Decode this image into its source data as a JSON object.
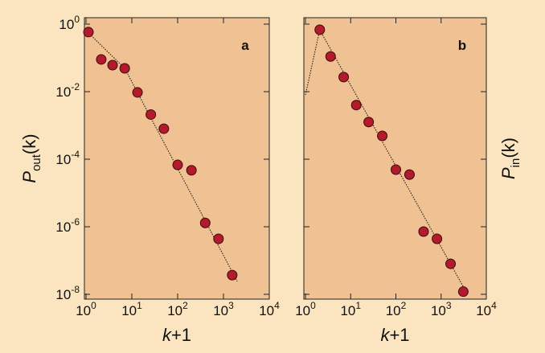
{
  "chart_data": [
    {
      "type": "scatter",
      "panel_label": "a",
      "ylabel": {
        "main": "P",
        "sub": "out",
        "arg": "(k)"
      },
      "ylabel_side": "left",
      "xlabel": {
        "main": "k",
        "rest": "+1"
      },
      "x": [
        1.13,
        2.15,
        3.8,
        7,
        13.3,
        26,
        50,
        100,
        200,
        400,
        780,
        1550
      ],
      "values": [
        0.58,
        0.09,
        0.061,
        0.049,
        0.0095,
        0.0021,
        0.0008,
        6.8e-05,
        4.7e-05,
        1.3e-06,
        4.4e-07,
        3.7e-08
      ],
      "color": "#b31b2c",
      "fit": {
        "x": [
          1,
          7,
          2000
        ],
        "values": [
          0.65,
          0.049,
          2.4e-08
        ]
      },
      "xlim": [
        1,
        10000
      ],
      "ylim": [
        1.55,
        7.2e-09
      ],
      "log_x": true,
      "log_y": true,
      "xticks": [
        {
          "value": 1,
          "label": "10",
          "sup": "0"
        },
        {
          "value": 10,
          "label": "10",
          "sup": "1"
        },
        {
          "value": 100,
          "label": "10",
          "sup": "2"
        },
        {
          "value": 1000,
          "label": "10",
          "sup": "3"
        },
        {
          "value": 10000,
          "label": "10",
          "sup": "4"
        }
      ],
      "yticks": [
        {
          "value": 1,
          "label": "10",
          "sup": "0"
        },
        {
          "value": 0.01,
          "label": "10",
          "sup": "-2"
        },
        {
          "value": 0.0001,
          "label": "10",
          "sup": "-4"
        },
        {
          "value": 1e-06,
          "label": "10",
          "sup": "-6"
        },
        {
          "value": 1e-08,
          "label": "10",
          "sup": "-8"
        }
      ]
    },
    {
      "type": "scatter",
      "panel_label": "b",
      "ylabel": {
        "main": "P",
        "sub": "in",
        "arg": "(k)"
      },
      "ylabel_side": "right",
      "xlabel": {
        "main": "k",
        "rest": "+1"
      },
      "x": [
        2.07,
        3.6,
        7,
        13.3,
        25,
        50,
        100,
        200,
        410,
        810,
        1620,
        3100
      ],
      "values": [
        0.68,
        0.11,
        0.027,
        0.004,
        0.00126,
        0.00049,
        4.9e-05,
        3.5e-05,
        7.2e-07,
        4.4e-07,
        8e-08,
        1.2e-08
      ],
      "color": "#b31b2c",
      "fit": {
        "x": [
          1,
          2.07,
          3500
        ],
        "values": [
          0.008,
          0.68,
          1.25e-08
        ]
      },
      "xlim": [
        1,
        10000
      ],
      "ylim": [
        1.55,
        7.2e-09
      ],
      "log_x": true,
      "log_y": true,
      "xticks": [
        {
          "value": 1,
          "label": "10",
          "sup": "0"
        },
        {
          "value": 10,
          "label": "10",
          "sup": "1"
        },
        {
          "value": 100,
          "label": "10",
          "sup": "2"
        },
        {
          "value": 1000,
          "label": "10",
          "sup": "3"
        },
        {
          "value": 10000,
          "label": "10",
          "sup": "4"
        }
      ],
      "yticks": [
        1,
        0.01,
        0.0001,
        1e-06,
        1e-08
      ]
    }
  ]
}
